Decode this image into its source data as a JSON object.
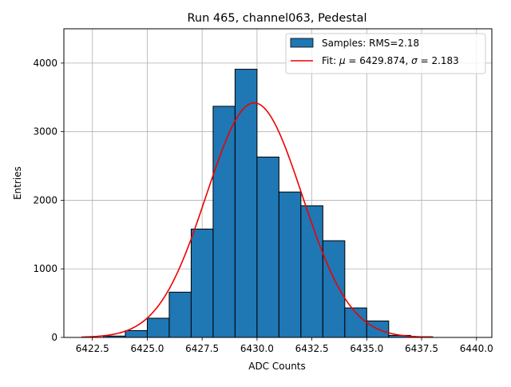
{
  "chart_data": {
    "type": "bar",
    "title": "Run 465, channel063, Pedestal",
    "xlabel": "ADC Counts",
    "ylabel": "Entries",
    "xlim": [
      6421.2,
      6440.7
    ],
    "ylim": [
      0,
      4500
    ],
    "x_ticks": [
      6422.5,
      6425.0,
      6427.5,
      6430.0,
      6432.5,
      6435.0,
      6437.5,
      6440.0
    ],
    "x_tick_labels": [
      "6422.5",
      "6425.0",
      "6427.5",
      "6430.0",
      "6432.5",
      "6435.0",
      "6437.5",
      "6440.0"
    ],
    "y_ticks": [
      0,
      1000,
      2000,
      3000,
      4000
    ],
    "y_tick_labels": [
      "0",
      "1000",
      "2000",
      "3000",
      "4000"
    ],
    "grid": true,
    "legend_position": "top-right",
    "bar_color": "#1f77b4",
    "fit_color": "#ee0000",
    "histogram": {
      "legend_label": "Samples: RMS=2.18",
      "bin_edges": [
        6423,
        6424,
        6425,
        6426,
        6427,
        6428,
        6429,
        6430,
        6431,
        6432,
        6433,
        6434,
        6435,
        6436,
        6437,
        6438,
        6439,
        6440
      ],
      "counts": [
        20,
        100,
        280,
        660,
        1580,
        3370,
        3910,
        2630,
        2120,
        1920,
        1410,
        430,
        240,
        30,
        10,
        0,
        0
      ]
    },
    "fit": {
      "legend_label_prefix": "Fit: ",
      "legend_mu_symbol": "μ",
      "legend_mu_value": " = 6429.874, ",
      "legend_sigma_symbol": "σ",
      "legend_sigma_value": " = 2.183",
      "mu": 6429.874,
      "sigma": 2.183,
      "amplitude": 3420,
      "x_range": [
        6422,
        6438
      ]
    }
  }
}
